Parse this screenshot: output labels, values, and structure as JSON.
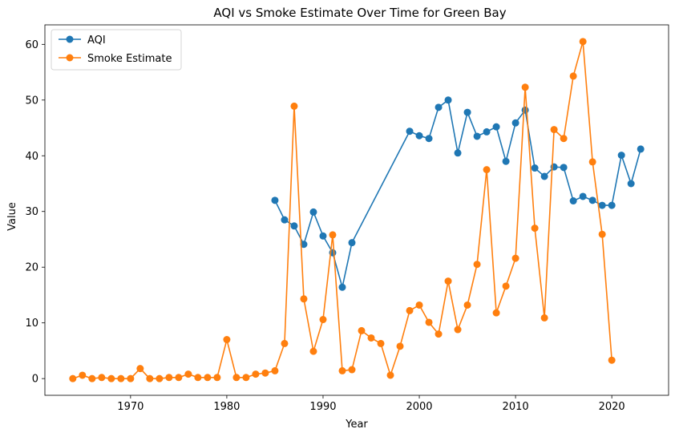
{
  "chart_data": {
    "type": "line",
    "title": "AQI vs Smoke Estimate Over Time for Green Bay",
    "xlabel": "Year",
    "ylabel": "Value",
    "xlim": [
      1961.1,
      2025.9
    ],
    "ylim": [
      -3.0,
      63.5
    ],
    "xticks": [
      1970,
      1980,
      1990,
      2000,
      2010,
      2020
    ],
    "yticks": [
      0,
      10,
      20,
      30,
      40,
      50,
      60
    ],
    "grid": false,
    "legend": "top-left",
    "series": [
      {
        "name": "AQI",
        "color": "#1f77b4",
        "x": [
          1985,
          1986,
          1987,
          1988,
          1989,
          1990,
          1991,
          1992,
          1993,
          1999,
          2000,
          2001,
          2002,
          2003,
          2004,
          2005,
          2006,
          2007,
          2008,
          2009,
          2010,
          2011,
          2012,
          2013,
          2014,
          2015,
          2016,
          2017,
          2018,
          2019,
          2020,
          2021,
          2022,
          2023
        ],
        "values": [
          32.0,
          28.5,
          27.4,
          24.1,
          29.9,
          25.6,
          22.6,
          16.4,
          24.4,
          44.4,
          43.6,
          43.1,
          48.7,
          50.0,
          40.5,
          47.8,
          43.5,
          44.3,
          45.2,
          39.0,
          45.9,
          48.2,
          37.8,
          36.3,
          38.0,
          37.9,
          31.9,
          32.7,
          32.0,
          31.1,
          31.1,
          40.1,
          35.0,
          41.2
        ]
      },
      {
        "name": "Smoke Estimate",
        "color": "#ff7f0e",
        "x": [
          1964,
          1965,
          1966,
          1967,
          1968,
          1969,
          1970,
          1971,
          1972,
          1973,
          1974,
          1975,
          1976,
          1977,
          1978,
          1979,
          1980,
          1981,
          1982,
          1983,
          1984,
          1985,
          1986,
          1987,
          1988,
          1989,
          1990,
          1991,
          1992,
          1993,
          1994,
          1995,
          1996,
          1997,
          1998,
          1999,
          2000,
          2001,
          2002,
          2003,
          2004,
          2005,
          2006,
          2007,
          2008,
          2009,
          2010,
          2011,
          2012,
          2013,
          2014,
          2015,
          2016,
          2017,
          2018,
          2019,
          2020
        ],
        "values": [
          0.0,
          0.6,
          0.0,
          0.2,
          0.0,
          0.0,
          0.0,
          1.8,
          0.0,
          0.0,
          0.2,
          0.2,
          0.8,
          0.2,
          0.2,
          0.2,
          7.0,
          0.2,
          0.2,
          0.8,
          1.0,
          1.4,
          6.3,
          48.9,
          14.3,
          4.9,
          10.6,
          25.8,
          1.4,
          1.6,
          8.6,
          7.3,
          6.3,
          0.6,
          5.8,
          12.2,
          13.2,
          10.1,
          8.0,
          17.5,
          8.8,
          13.2,
          20.5,
          37.5,
          11.8,
          16.6,
          21.6,
          52.3,
          27.0,
          10.9,
          44.7,
          43.1,
          54.3,
          60.5,
          38.9,
          25.9,
          3.3
        ]
      }
    ]
  }
}
